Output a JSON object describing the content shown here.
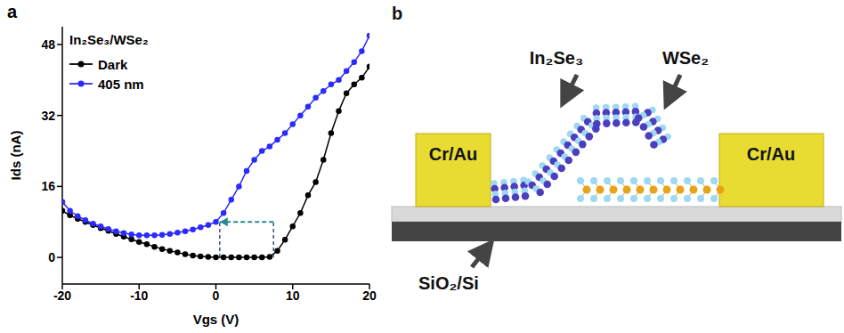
{
  "chart_data": {
    "type": "line",
    "panel_label": "a",
    "annotation": "In₂Se₃/WSe₂",
    "x_label": "Vgs (V)",
    "y_label": "Ids (nA)",
    "x": [
      -20,
      -19,
      -18,
      -17,
      -16,
      -15,
      -14,
      -13,
      -12,
      -11,
      -10,
      -9,
      -8,
      -7,
      -6,
      -5,
      -4,
      -3,
      -2,
      -1,
      0,
      1,
      2,
      3,
      4,
      5,
      6,
      7,
      8,
      9,
      10,
      11,
      12,
      13,
      14,
      15,
      16,
      17,
      18,
      19,
      20
    ],
    "series": [
      {
        "name": "Dark",
        "color": "#000000",
        "marker": "circle",
        "values": [
          10.5,
          9.5,
          8.7,
          8.0,
          7.3,
          6.6,
          6.0,
          5.3,
          4.7,
          4.1,
          3.5,
          3.0,
          2.4,
          1.9,
          1.5,
          1.1,
          0.7,
          0.4,
          0.2,
          0.1,
          0.0,
          0.0,
          0.0,
          0.0,
          0.0,
          0.0,
          0.0,
          0.1,
          1.5,
          4,
          7,
          10,
          14,
          17,
          22,
          28,
          33,
          37,
          39,
          40.5,
          43
        ]
      },
      {
        "name": "405 nm",
        "color": "#2b2bff",
        "marker": "circle",
        "values": [
          12.5,
          10.5,
          9.3,
          8.4,
          7.6,
          7.0,
          6.4,
          5.9,
          5.5,
          5.2,
          5.0,
          5.0,
          5.0,
          5.1,
          5.3,
          5.6,
          5.9,
          6.3,
          6.8,
          7.3,
          8.0,
          10,
          13,
          16,
          19.5,
          22,
          24,
          25,
          26.5,
          28,
          30,
          32,
          34,
          36,
          37.5,
          39,
          40,
          42,
          44,
          46.5,
          50
        ]
      }
    ],
    "threshold_shift": {
      "x": [
        7.5,
        0.5
      ],
      "y": [
        0,
        8
      ]
    },
    "xlim": [
      -20,
      20
    ],
    "xticks": [
      -20,
      -10,
      0,
      10,
      20
    ],
    "ylim": [
      -6,
      52
    ],
    "yticks": [
      0,
      16,
      32,
      48
    ],
    "grid": false,
    "legend": "upper left"
  },
  "diagram": {
    "panel_label": "b",
    "electrode_left": "Cr/Au",
    "electrode_right": "Cr/Au",
    "flake_top": "In₂Se₃",
    "flake_bottom": "WSe₂",
    "substrate": "SiO₂/Si"
  }
}
